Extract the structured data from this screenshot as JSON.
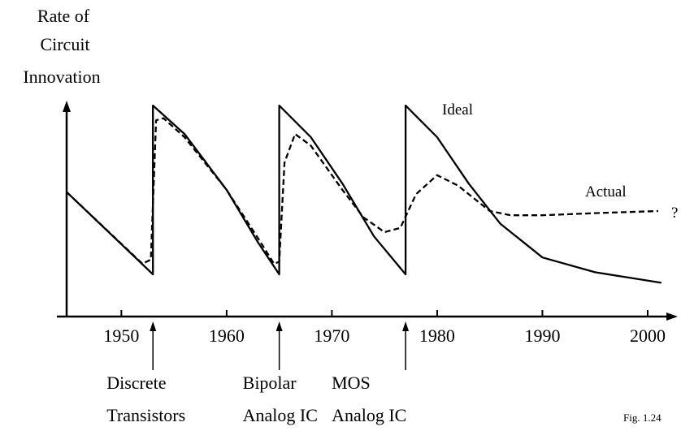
{
  "chart_data": {
    "type": "line",
    "ylabel": [
      "Rate of",
      "Circuit",
      "Innovation"
    ],
    "xlim": [
      1944.8,
      2001.7
    ],
    "xticks": [
      1950,
      1960,
      1970,
      1980,
      1990,
      2000
    ],
    "ylim": [
      0,
      100
    ],
    "series": [
      {
        "name": "Ideal",
        "color": "#000000",
        "style": "solid",
        "x": [
          1944.8,
          1953,
          1953,
          1956,
          1960,
          1963,
          1965,
          1965,
          1968,
          1971,
          1974,
          1977,
          1977,
          1980,
          1983,
          1986,
          1990,
          1995,
          2001.3
        ],
        "values": [
          59,
          20,
          100,
          86.5,
          60,
          35,
          20,
          100,
          85,
          63,
          38,
          20,
          100,
          85,
          63,
          44,
          28,
          21,
          16
        ]
      },
      {
        "name": "Actual",
        "color": "#000000",
        "style": "dashed",
        "x": [
          1944.8,
          1952,
          1952.8,
          1953.3,
          1954,
          1956,
          1960,
          1963,
          1964.5,
          1965,
          1965.5,
          1966.5,
          1968,
          1971,
          1973,
          1975,
          1976.5,
          1978,
          1980,
          1982,
          1985,
          1987,
          1990,
          1995,
          2001
        ],
        "values": [
          59,
          25,
          27,
          93,
          94,
          85,
          60,
          37,
          25,
          26,
          73,
          86.5,
          81,
          60,
          47,
          40,
          42,
          58,
          67,
          62,
          50,
          48,
          48,
          49,
          50
        ]
      }
    ],
    "annotations": [
      {
        "x": 1953,
        "lines": [
          "Discrete",
          "Transistors"
        ]
      },
      {
        "x": 1965,
        "lines": [
          "Bipolar",
          "Analog IC"
        ]
      },
      {
        "x": 1977,
        "lines": [
          "MOS",
          "Analog IC"
        ]
      }
    ],
    "question": "?",
    "caption": "Fig. 1.24"
  }
}
